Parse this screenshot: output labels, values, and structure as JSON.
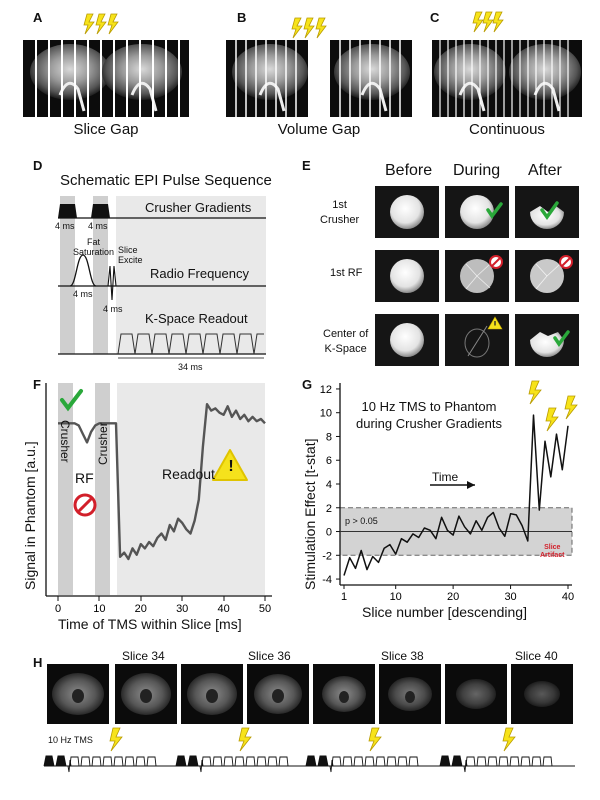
{
  "panels": {
    "A": {
      "label": "A",
      "caption": "Slice Gap"
    },
    "B": {
      "label": "B",
      "caption": "Volume Gap"
    },
    "C": {
      "label": "C",
      "caption": "Continuous"
    },
    "D": {
      "label": "D",
      "title": "Schematic EPI Pulse Sequence",
      "crusher": "Crusher Gradients",
      "rf": "Radio Frequency",
      "kspace": "K-Space Readout",
      "fatsat": [
        "Fat",
        "Saturation"
      ],
      "slice_excite": [
        "Slice",
        "Excite"
      ],
      "t4a": "4 ms",
      "t4b": "4 ms",
      "t4c": "4 ms",
      "t4d": "4 ms",
      "t34": "34 ms"
    },
    "E": {
      "label": "E",
      "cols": [
        "Before",
        "During",
        "After"
      ],
      "rows": [
        [
          "1st",
          "Crusher"
        ],
        [
          "1st RF"
        ],
        [
          "Center of",
          "K-Space"
        ]
      ]
    },
    "F": {
      "label": "F",
      "ylabel": "Signal in Phantom [a.u.]",
      "xlabel": "Time of TMS within Slice [ms]",
      "crusher1": "Crusher",
      "crusher2": "Crusher",
      "rf": "RF",
      "readout": "Readout",
      "warn": "!",
      "xticks": [
        "0",
        "10",
        "20",
        "30",
        "40",
        "50"
      ]
    },
    "G": {
      "label": "G",
      "ylabel": "Stimulation Effect [t-stat]",
      "xlabel": "Slice number [descending]",
      "title": [
        "10 Hz TMS to Phantom",
        "during Crusher Gradients"
      ],
      "time": "Time",
      "pval": "p > 0.05",
      "artifact": [
        "Slice",
        "Artifact"
      ],
      "xticks": [
        "1",
        "10",
        "20",
        "30",
        "40"
      ],
      "yticks": [
        "-4",
        "-2",
        "0",
        "2",
        "4",
        "6",
        "8",
        "10",
        "12"
      ]
    },
    "H": {
      "label": "H",
      "slices": [
        "Slice 34",
        "Slice 36",
        "Slice 38",
        "Slice 40"
      ],
      "tms": "10 Hz TMS"
    }
  },
  "chart_data": [
    {
      "type": "line",
      "title": "",
      "xlabel": "Time of TMS within Slice [ms]",
      "ylabel": "Signal in Phantom [a.u.]",
      "xlim": [
        -2,
        52
      ],
      "ylim": [
        0,
        1
      ],
      "series": [
        {
          "x": [
            0,
            2,
            4,
            5,
            6,
            7,
            8,
            9,
            10,
            11,
            12,
            13,
            14,
            15,
            16,
            17,
            18,
            19,
            20,
            21,
            22,
            23,
            24,
            25,
            26,
            27,
            28,
            29,
            30,
            31,
            32,
            33,
            34,
            35,
            36,
            37,
            38,
            39,
            40,
            41,
            42,
            43,
            44,
            45,
            46,
            47,
            48,
            49,
            50
          ],
          "y": [
            0.81,
            0.81,
            0.81,
            0.8,
            0.76,
            0.72,
            0.77,
            0.8,
            0.81,
            0.81,
            0.81,
            0.81,
            0.81,
            0.18,
            0.2,
            0.17,
            0.22,
            0.19,
            0.24,
            0.22,
            0.25,
            0.23,
            0.27,
            0.29,
            0.26,
            0.33,
            0.3,
            0.36,
            0.34,
            0.31,
            0.29,
            0.35,
            0.45,
            0.7,
            0.9,
            0.87,
            0.88,
            0.86,
            0.85,
            0.89,
            0.84,
            0.87,
            0.83,
            0.85,
            0.82,
            0.84,
            0.82,
            0.83,
            0.81
          ]
        }
      ]
    },
    {
      "type": "line",
      "title": "10 Hz TMS to Phantom during Crusher Gradients",
      "xlabel": "Slice number [descending]",
      "ylabel": "Stimulation Effect [t-stat]",
      "xlim": [
        0,
        41
      ],
      "ylim": [
        -4.5,
        12.5
      ],
      "series": [
        {
          "x": [
            1,
            2,
            3,
            4,
            5,
            6,
            7,
            8,
            9,
            10,
            11,
            12,
            13,
            14,
            15,
            16,
            17,
            18,
            19,
            20,
            21,
            22,
            23,
            24,
            25,
            26,
            27,
            28,
            29,
            30,
            31,
            32,
            33,
            34,
            35,
            36,
            37,
            38,
            39,
            40
          ],
          "y": [
            -3.7,
            -2.2,
            -3.1,
            -1.6,
            -3.2,
            -2.1,
            -2.6,
            -1.4,
            -1.1,
            -1.9,
            -0.6,
            -0.9,
            -0.2,
            -0.5,
            0.3,
            0.1,
            -0.6,
            1.2,
            0.1,
            -0.3,
            1.3,
            0.4,
            -0.2,
            0.9,
            0.1,
            1.2,
            1.6,
            0.3,
            -0.4,
            1.5,
            1.4,
            0.5,
            -0.8,
            9.8,
            1.8,
            7.6,
            4.6,
            8.2,
            5.2,
            8.9
          ]
        }
      ]
    }
  ]
}
